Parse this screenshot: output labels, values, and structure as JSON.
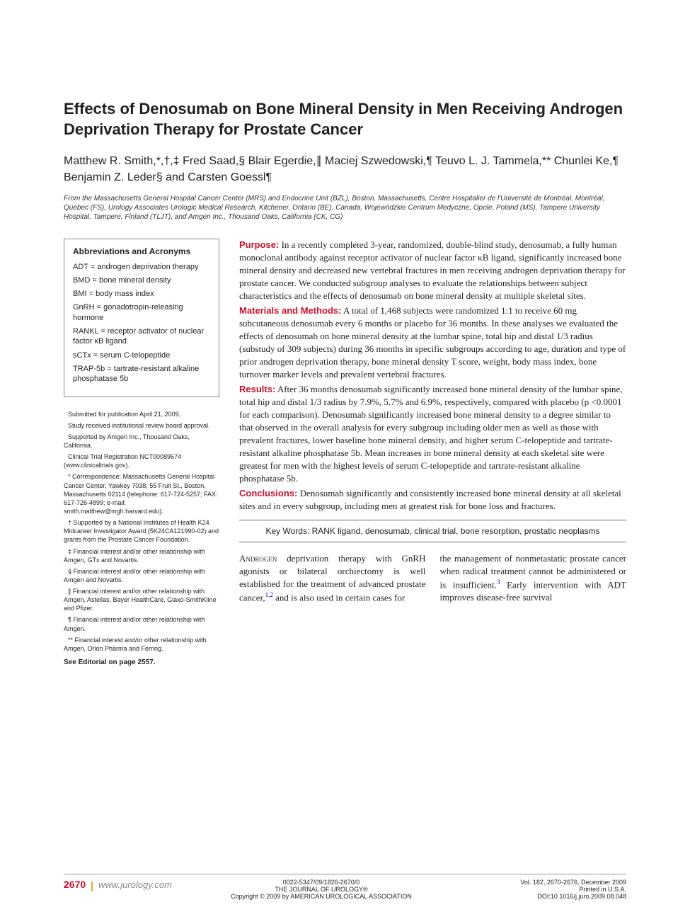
{
  "title": "Effects of Denosumab on Bone Mineral Density in Men Receiving Androgen Deprivation Therapy for Prostate Cancer",
  "authors": "Matthew R. Smith,*,†,‡ Fred Saad,§ Blair Egerdie,∥ Maciej Szwedowski,¶ Teuvo L. J. Tammela,** Chunlei Ke,¶ Benjamin Z. Leder§ and Carsten Goessl¶",
  "affiliations": "From the Massachusetts General Hospital Cancer Center (MRS) and Endocrine Unit (BZL), Boston, Massachusetts, Centre Hospitalier de l'Université de Montréal, Montréal, Quebec (FS), Urology Associates Urologic Medical Research, Kitchener, Ontario (BE), Canada, Wojewódzkie Centrum Medyczne, Opole, Poland (MS), Tampere University Hospital, Tampere, Finland (TLJT), and Amgen Inc., Thousand Oaks, California (CK, CG)",
  "abbrev": {
    "heading": "Abbreviations and Acronyms",
    "items": [
      "ADT = androgen deprivation therapy",
      "BMD = bone mineral density",
      "BMI = body mass index",
      "GnRH = gonadotropin-releasing hormone",
      "RANKL = receptor activator of nuclear factor κB ligand",
      "sCTx = serum C-telopeptide",
      "TRAP-5b = tartrate-resistant alkaline phosphatase 5b"
    ]
  },
  "footnotes": [
    "Submitted for publication April 21, 2009.",
    "Study received institutional review board approval.",
    "Supported by Amgen Inc., Thousand Oaks, California.",
    "Clinical Trial Registration NCT00089674 (www.clinicaltrials.gov).",
    "* Correspondence: Massachusetts General Hospital Cancer Center, Yawkey 7038, 55 Fruit St., Boston, Massachusetts 02114 (telephone: 617-724-5257; FAX: 617-726-4899; e-mail: smith.matthew@mgh.harvard.edu).",
    "† Supported by a National Institutes of Health K24 Midcareer Investigator Award (5K24CA121990-02) and grants from the Prostate Cancer Foundation.",
    "‡ Financial interest and/or other relationship with Amgen, GTx and Novartis.",
    "§ Financial interest and/or other relationship with Amgen and Novartis.",
    "∥ Financial interest and/or other relationship with Amgen, Astellas, Bayer HealthCare, Glaxo-SmithKline and Pfizer.",
    "¶ Financial interest and/or other relationship with Amgen.",
    "** Financial interest and/or other relationship with Amgen, Orion Pharma and Ferring."
  ],
  "editorial": "See Editorial on page 2557.",
  "abstract": {
    "purpose_label": "Purpose:",
    "purpose": " In a recently completed 3-year, randomized, double-blind study, denosumab, a fully human monoclonal antibody against receptor activator of nuclear factor κB ligand, significantly increased bone mineral density and decreased new vertebral fractures in men receiving androgen deprivation therapy for prostate cancer. We conducted subgroup analyses to evaluate the relationships between subject characteristics and the effects of denosumab on bone mineral density at multiple skeletal sites.",
    "methods_label": "Materials and Methods:",
    "methods": " A total of 1,468 subjects were randomized 1:1 to receive 60 mg subcutaneous denosumab every 6 months or placebo for 36 months. In these analyses we evaluated the effects of denosumab on bone mineral density at the lumbar spine, total hip and distal 1/3 radius (substudy of 309 subjects) during 36 months in specific subgroups according to age, duration and type of prior androgen deprivation therapy, bone mineral density T score, weight, body mass index, bone turnover marker levels and prevalent vertebral fractures.",
    "results_label": "Results:",
    "results": " After 36 months denosumab significantly increased bone mineral density of the lumbar spine, total hip and distal 1/3 radius by 7.9%, 5.7% and 6.9%, respectively, compared with placebo (p <0.0001 for each comparison). Denosumab significantly increased bone mineral density to a degree similar to that observed in the overall analysis for every subgroup including older men as well as those with prevalent fractures, lower baseline bone mineral density, and higher serum C-telopeptide and tartrate-resistant alkaline phosphatase 5b. Mean increases in bone mineral density at each skeletal site were greatest for men with the highest levels of serum C-telopeptide and tartrate-resistant alkaline phosphatase 5b.",
    "conclusions_label": "Conclusions:",
    "conclusions": " Denosumab significantly and consistently increased bone mineral density at all skeletal sites and in every subgroup, including men at greatest risk for bone loss and fractures."
  },
  "keywords_label": "Key Words:",
  "keywords": " RANK ligand, denosumab, clinical trial, bone resorption, prostatic neoplasms",
  "body": {
    "col1_lead": "Androgen",
    "col1_rest": " deprivation therapy with GnRH agonists or bilateral orchiectomy is well established for the treatment of advanced prostate cancer,",
    "col1_ref1": "1,2",
    "col1_tail": " and is also used in certain cases for",
    "col2_a": "the management of nonmetastatic prostate cancer when radical treatment cannot be administered or is insufficient.",
    "col2_ref": "3",
    "col2_b": " Early intervention with ADT improves disease-free survival"
  },
  "footer": {
    "page_number": "2670",
    "site": "www.jurology.com",
    "left_lines": [
      "0022-5347/09/1826-2670/0",
      "THE JOURNAL OF UROLOGY®",
      "Copyright © 2009 by AMERICAN UROLOGICAL ASSOCIATION"
    ],
    "right_lines": [
      "Vol. 182, 2670-2676, December 2009",
      "Printed in U.S.A.",
      "DOI:10.1016/j.juro.2009.08.048"
    ]
  },
  "colors": {
    "accent_red": "#c8102e",
    "link_blue": "#0000cc",
    "rule_gray": "#888888",
    "divider_orange": "#f5a623"
  }
}
